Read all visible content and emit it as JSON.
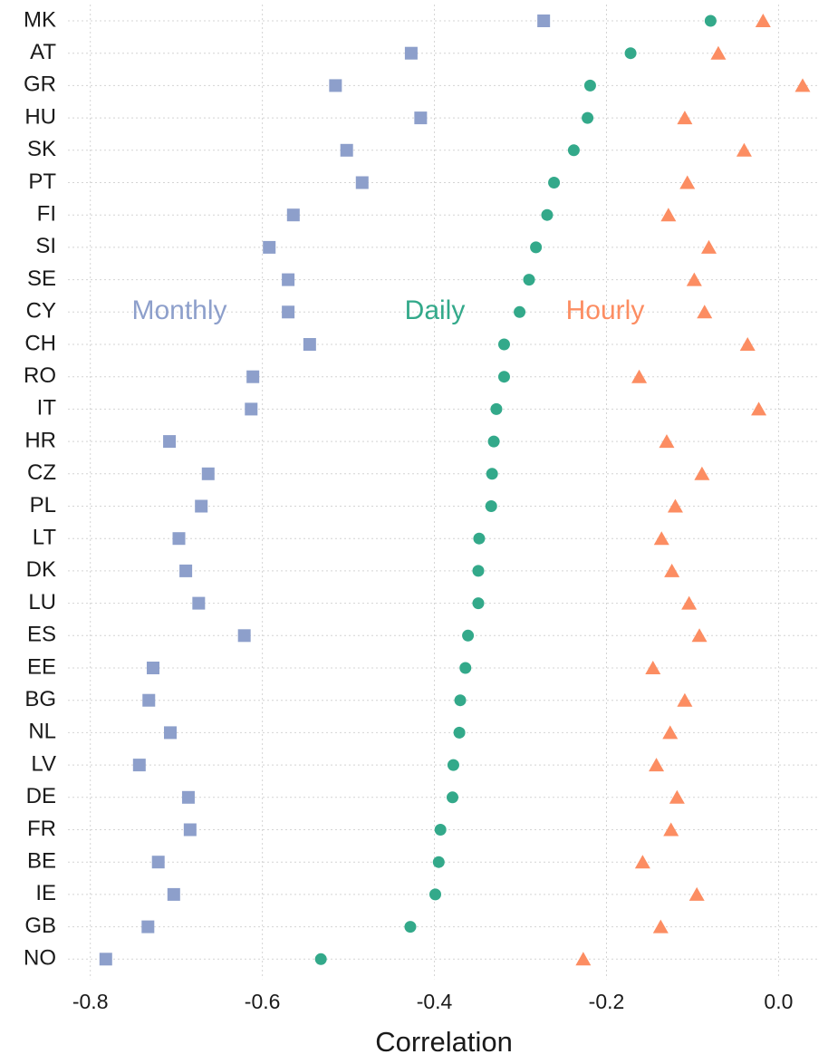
{
  "chart_data": {
    "type": "dot",
    "x_label": "Correlation",
    "categories": [
      "MK",
      "AT",
      "GR",
      "HU",
      "SK",
      "PT",
      "FI",
      "SI",
      "SE",
      "CY",
      "CH",
      "RO",
      "IT",
      "HR",
      "CZ",
      "PL",
      "LT",
      "DK",
      "LU",
      "ES",
      "EE",
      "BG",
      "NL",
      "LV",
      "DE",
      "FR",
      "BE",
      "IE",
      "GB",
      "NO"
    ],
    "series": [
      {
        "name": "Monthly",
        "color": "#8d9fcb",
        "marker": "square",
        "values": [
          -0.273,
          -0.427,
          -0.515,
          -0.416,
          -0.502,
          -0.484,
          -0.564,
          -0.592,
          -0.57,
          -0.57,
          -0.545,
          -0.611,
          -0.613,
          -0.708,
          -0.663,
          -0.671,
          -0.697,
          -0.689,
          -0.674,
          -0.621,
          -0.727,
          -0.732,
          -0.707,
          -0.743,
          -0.686,
          -0.684,
          -0.721,
          -0.703,
          -0.733,
          -0.782
        ]
      },
      {
        "name": "Daily",
        "color": "#33a98a",
        "marker": "circle",
        "values": [
          -0.079,
          -0.172,
          -0.219,
          -0.222,
          -0.238,
          -0.261,
          -0.269,
          -0.282,
          -0.29,
          -0.301,
          -0.319,
          -0.319,
          -0.328,
          -0.331,
          -0.333,
          -0.334,
          -0.348,
          -0.349,
          -0.349,
          -0.361,
          -0.364,
          -0.37,
          -0.371,
          -0.378,
          -0.379,
          -0.393,
          -0.395,
          -0.399,
          -0.428,
          -0.532
        ]
      },
      {
        "name": "Hourly",
        "color": "#fc8d62",
        "marker": "triangle",
        "values": [
          -0.018,
          -0.07,
          0.028,
          -0.109,
          -0.04,
          -0.106,
          -0.128,
          -0.081,
          -0.098,
          -0.086,
          -0.036,
          -0.162,
          -0.023,
          -0.13,
          -0.089,
          -0.12,
          -0.136,
          -0.124,
          -0.104,
          -0.092,
          -0.146,
          -0.109,
          -0.126,
          -0.142,
          -0.118,
          -0.125,
          -0.158,
          -0.095,
          -0.137,
          -0.227
        ]
      }
    ],
    "xlim": [
      -0.826,
      0.048
    ],
    "xticks": [
      -0.8,
      -0.6,
      -0.4,
      -0.2,
      {
        "value": 0,
        "label": "0.0"
      }
    ],
    "grid": true
  }
}
